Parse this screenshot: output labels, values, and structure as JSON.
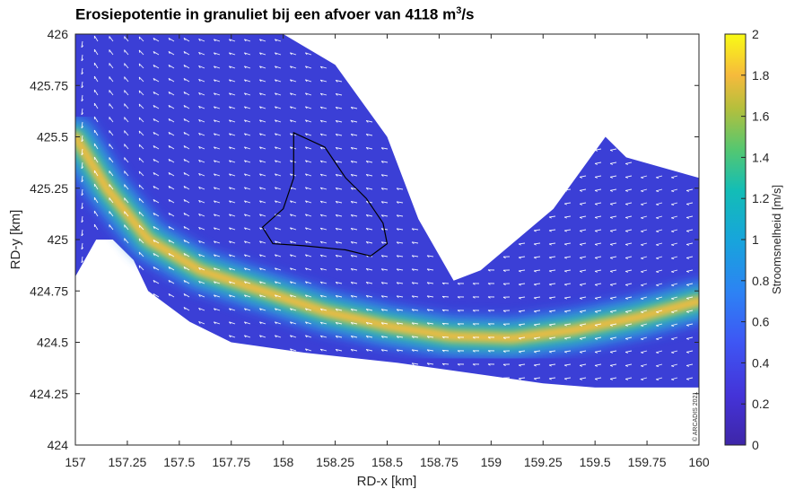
{
  "title": {
    "main": "Erosiepotentie in granuliet bij een afvoer van 4118 m",
    "sup": "3",
    "tail": "/s"
  },
  "copyright": "© ARCADIS 2021",
  "colors": {
    "low": "#3e26a8",
    "mid_blue": "#2f6af5",
    "cyan": "#16b3ce",
    "green": "#6ecc58",
    "orange": "#f8b93f",
    "high": "#f9fb15",
    "arrows": "#ffffff",
    "outline": "#000000"
  },
  "chart_data": {
    "type": "heatmap",
    "title": "Erosiepotentie in granuliet bij een afvoer van 4118 m³/s",
    "xlabel": "RD-x [km]",
    "ylabel": "RD-y [km]",
    "xlim": [
      157,
      160
    ],
    "ylim": [
      424,
      426
    ],
    "x_ticks": [
      "157",
      "157.25",
      "157.5",
      "157.75",
      "158",
      "158.25",
      "158.5",
      "158.75",
      "159",
      "159.25",
      "159.5",
      "159.75",
      "160"
    ],
    "y_ticks": [
      "426",
      "425.75",
      "425.5",
      "425.25",
      "425",
      "424.75",
      "424.5",
      "424.25",
      "424"
    ],
    "colorbar": {
      "label": "Stroomsnelheid [m/s]",
      "min": 0,
      "max": 2,
      "ticks": [
        "2",
        "1.8",
        "1.6",
        "1.4",
        "1.2",
        "1",
        "0.8",
        "0.6",
        "0.4",
        "0.2",
        "0"
      ]
    },
    "domain_upper_edge": [
      [
        157.0,
        426.0
      ],
      [
        158.0,
        426.0
      ],
      [
        158.25,
        425.85
      ],
      [
        158.5,
        425.5
      ],
      [
        158.65,
        425.1
      ],
      [
        158.82,
        424.8
      ],
      [
        158.95,
        424.85
      ],
      [
        159.3,
        425.15
      ],
      [
        159.55,
        425.5
      ],
      [
        159.65,
        425.4
      ],
      [
        160.0,
        425.3
      ]
    ],
    "domain_lower_edge": [
      [
        160.0,
        424.28
      ],
      [
        159.5,
        424.28
      ],
      [
        159.25,
        424.3
      ],
      [
        158.9,
        424.35
      ],
      [
        158.55,
        424.4
      ],
      [
        158.1,
        424.45
      ],
      [
        157.75,
        424.5
      ],
      [
        157.55,
        424.6
      ],
      [
        157.35,
        424.75
      ],
      [
        157.28,
        424.9
      ],
      [
        157.18,
        425.0
      ],
      [
        157.1,
        425.0
      ],
      [
        157.0,
        424.82
      ]
    ],
    "high_velocity_band": [
      [
        157.0,
        425.5
      ],
      [
        157.15,
        425.25
      ],
      [
        157.35,
        425.0
      ],
      [
        157.6,
        424.85
      ],
      [
        157.9,
        424.75
      ],
      [
        158.2,
        424.65
      ],
      [
        158.5,
        424.58
      ],
      [
        158.8,
        424.53
      ],
      [
        159.1,
        424.52
      ],
      [
        159.4,
        424.56
      ],
      [
        159.7,
        424.62
      ],
      [
        160.0,
        424.7
      ]
    ],
    "high_velocity_peak_ms": 1.8,
    "outlined_area": [
      [
        158.05,
        425.52
      ],
      [
        158.2,
        425.45
      ],
      [
        158.3,
        425.3
      ],
      [
        158.4,
        425.2
      ],
      [
        158.48,
        425.08
      ],
      [
        158.5,
        424.98
      ],
      [
        158.42,
        424.92
      ],
      [
        158.3,
        424.95
      ],
      [
        158.1,
        424.97
      ],
      [
        157.95,
        424.98
      ],
      [
        157.9,
        425.06
      ],
      [
        158.0,
        425.15
      ],
      [
        158.05,
        425.3
      ]
    ],
    "flow_direction": "west"
  }
}
